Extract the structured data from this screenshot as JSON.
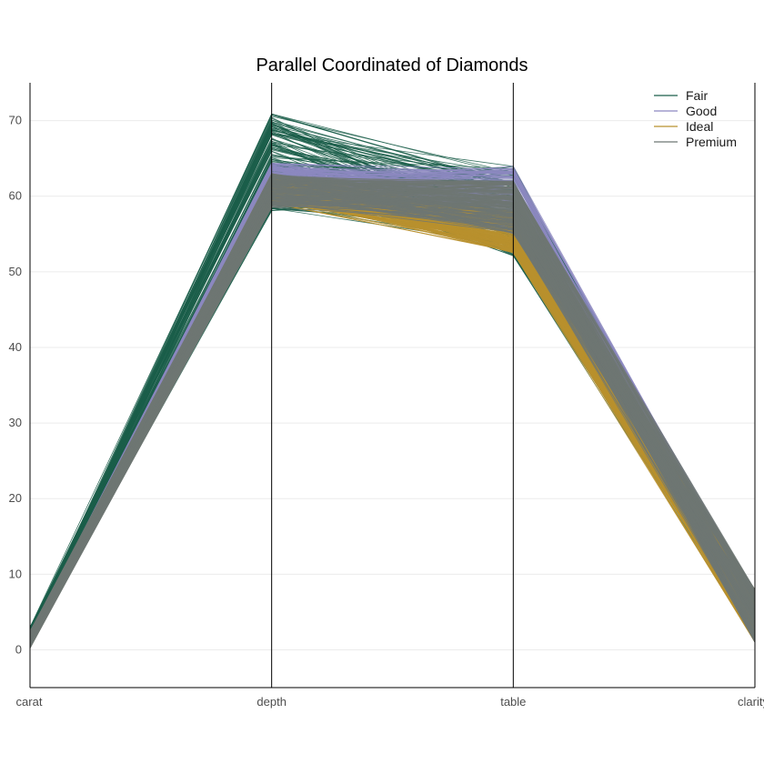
{
  "chart_data": {
    "type": "parallel_coordinates",
    "title": "Parallel Coordinated of Diamonds",
    "dimensions": [
      "carat",
      "depth",
      "table",
      "clarity"
    ],
    "ylim": [
      -5,
      75
    ],
    "yticks": [
      0,
      10,
      20,
      30,
      40,
      50,
      60,
      70
    ],
    "grid": true,
    "legend_position": "top-right",
    "series": [
      {
        "name": "Fair",
        "color": "#1b5e4a",
        "carat_range": [
          0.3,
          3.0
        ],
        "depth_range": [
          58,
          71
        ],
        "table_range": [
          52,
          64
        ],
        "clarity_range": [
          1,
          7
        ]
      },
      {
        "name": "Good",
        "color": "#8c88c0",
        "carat_range": [
          0.3,
          2.0
        ],
        "depth_range": [
          60.5,
          64.5
        ],
        "table_range": [
          55,
          64
        ],
        "clarity_range": [
          1,
          8
        ]
      },
      {
        "name": "Ideal",
        "color": "#b8912e",
        "carat_range": [
          0.2,
          2.0
        ],
        "depth_range": [
          59,
          63
        ],
        "table_range": [
          52.5,
          58
        ],
        "clarity_range": [
          1,
          8
        ]
      },
      {
        "name": "Premium",
        "color": "#6e7773",
        "carat_range": [
          0.2,
          2.5
        ],
        "depth_range": [
          58.5,
          63
        ],
        "table_range": [
          55,
          62
        ],
        "clarity_range": [
          1,
          8
        ]
      }
    ]
  }
}
